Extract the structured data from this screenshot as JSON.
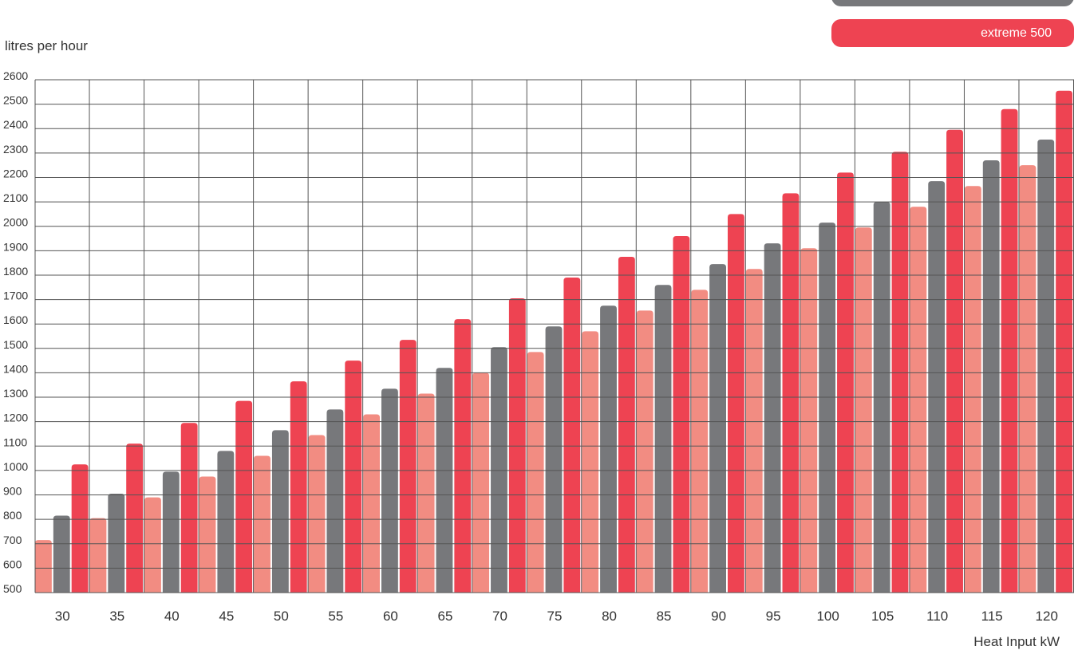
{
  "chart_data": {
    "type": "bar",
    "ylabel": "litres per hour",
    "xlabel": "Heat Input kW",
    "categories": [
      "30",
      "35",
      "40",
      "45",
      "50",
      "55",
      "60",
      "65",
      "70",
      "75",
      "80",
      "85",
      "90",
      "95",
      "100",
      "105",
      "110",
      "115",
      "120"
    ],
    "ylim": [
      500,
      2600
    ],
    "yticks": [
      500,
      600,
      700,
      800,
      900,
      1000,
      1100,
      1200,
      1300,
      1400,
      1500,
      1600,
      1700,
      1800,
      1900,
      2000,
      2100,
      2200,
      2300,
      2400,
      2500,
      2600
    ],
    "grid": true,
    "series": [
      {
        "name": "",
        "color": "#f28c82",
        "values": [
          715,
          805,
          890,
          975,
          1060,
          1145,
          1230,
          1315,
          1400,
          1485,
          1570,
          1655,
          1740,
          1825,
          1910,
          1995,
          2080,
          2165,
          2250
        ]
      },
      {
        "name": "",
        "color": "#77787b",
        "values": [
          815,
          905,
          995,
          1080,
          1165,
          1250,
          1335,
          1420,
          1505,
          1590,
          1675,
          1760,
          1845,
          1930,
          2015,
          2100,
          2185,
          2270,
          2355
        ]
      },
      {
        "name": "extreme 500",
        "color": "#ee4352",
        "values": [
          1025,
          1110,
          1195,
          1285,
          1365,
          1450,
          1535,
          1620,
          1705,
          1790,
          1875,
          1960,
          2050,
          2135,
          2220,
          2305,
          2395,
          2480,
          2555
        ]
      }
    ]
  },
  "legend": {
    "grey_color": "#77787b",
    "red_label": "extreme 500",
    "red_color": "#ee4352"
  }
}
